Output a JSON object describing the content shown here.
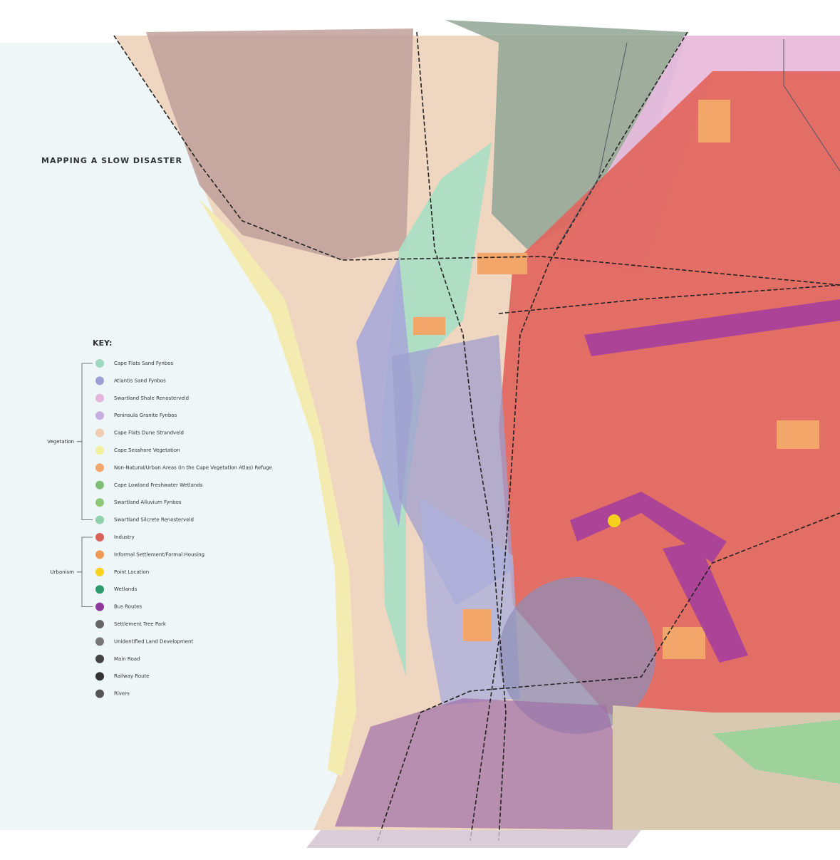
{
  "title": "MAPPING A SLOW DISASTER",
  "key": {
    "heading": "KEY:",
    "groups": [
      "Vegetation",
      "Urbanism"
    ],
    "items": [
      {
        "label": "Cape Flats Sand Fynbos",
        "color": "#9fd8c0"
      },
      {
        "label": "Atlantis Sand Fynbos",
        "color": "#9d9fd6"
      },
      {
        "label": "Swartland Shale Renosterveld",
        "color": "#e7b6dc"
      },
      {
        "label": "Peninsula Granite Fynbos",
        "color": "#c7aee0"
      },
      {
        "label": "Cape Flats Dune Strandveld",
        "color": "#f0cdb2"
      },
      {
        "label": "Cape Seashore Vegetation",
        "color": "#f1ee9e"
      },
      {
        "label": "Non-Natural/Urban Areas (in the Cape Vegetation Atlas) Refuge",
        "color": "#f2a66a"
      },
      {
        "label": "Cape Lowland Freshwater Wetlands",
        "color": "#7fbf76"
      },
      {
        "label": "Swartland Alluvium Fynbos",
        "color": "#8fc77a"
      },
      {
        "label": "Swartland Silcrete Renosterveld",
        "color": "#8fd1a8"
      },
      {
        "label": "Industry",
        "color": "#d9625a"
      },
      {
        "label": "Informal Settlement/Formal Housing",
        "color": "#f09a55"
      },
      {
        "label": "Point Location",
        "color": "#f6d21c"
      },
      {
        "label": "Wetlands",
        "color": "#2e9a6c"
      },
      {
        "label": "Bus Routes",
        "color": "#8e3b9c"
      },
      {
        "label": "Settlement Tree Park",
        "color": "#666666"
      },
      {
        "label": "Unidentified Land Development",
        "color": "#777777"
      },
      {
        "label": "Main Road",
        "color": "#444444"
      },
      {
        "label": "Railway Route",
        "color": "#333333"
      },
      {
        "label": "Rivers",
        "color": "#555555"
      }
    ]
  }
}
